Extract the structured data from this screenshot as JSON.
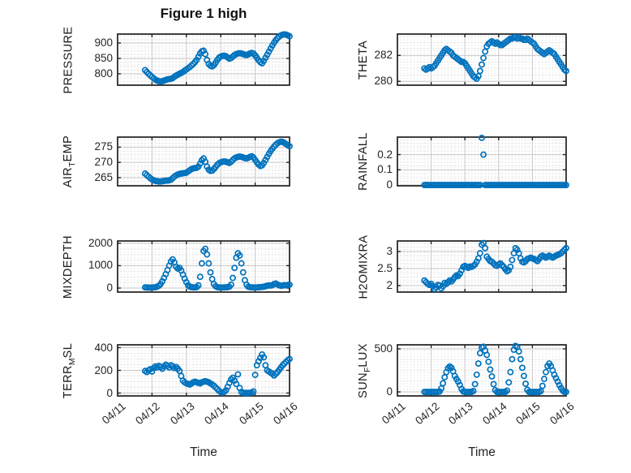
{
  "figure": {
    "title": "Figure 1 high",
    "xlabel": "Time",
    "marker_color": "#0072BD",
    "marker": "open-circle",
    "x_tick_labels": [
      "04/11",
      "04/12",
      "04/13",
      "04/14",
      "04/15",
      "04/16"
    ],
    "x_range_days": [
      0,
      5
    ]
  },
  "chart_data": [
    {
      "id": "pressure",
      "type": "scatter",
      "row": 0,
      "col": 0,
      "ylabel_segments": [
        {
          "text": "PRESSURE"
        }
      ],
      "yticks": [
        800,
        850,
        900
      ],
      "ylim": [
        763,
        929
      ],
      "x_minor_step_days": 0.1,
      "show_x_tick_labels": false,
      "series": {
        "t0": 0.8,
        "dt": 0.05,
        "values": [
          812,
          806,
          800,
          795,
          790,
          785,
          781,
          778,
          776,
          775,
          776,
          778,
          780,
          782,
          783,
          784,
          786,
          790,
          794,
          797,
          800,
          803,
          806,
          810,
          814,
          818,
          822,
          827,
          832,
          838,
          845,
          855,
          866,
          873,
          875,
          864,
          845,
          832,
          826,
          824,
          828,
          836,
          845,
          852,
          856,
          858,
          859,
          857,
          853,
          849,
          851,
          856,
          861,
          864,
          866,
          867,
          866,
          864,
          862,
          861,
          863,
          866,
          868,
          866,
          860,
          852,
          844,
          838,
          834,
          842,
          852,
          862,
          872,
          882,
          892,
          901,
          909,
          916,
          921,
          925,
          927,
          928,
          927,
          925,
          922
        ]
      }
    },
    {
      "id": "theta",
      "type": "scatter",
      "row": 0,
      "col": 1,
      "ylabel_segments": [
        {
          "text": "THETA"
        }
      ],
      "yticks": [
        280,
        282
      ],
      "ylim": [
        279.7,
        283.65
      ],
      "x_minor_step_days": 0.1,
      "show_x_tick_labels": false,
      "series": {
        "t0": 0.8,
        "dt": 0.05,
        "values": [
          281.0,
          280.9,
          281.0,
          281.1,
          281.0,
          281.1,
          281.2,
          281.4,
          281.6,
          281.8,
          282.0,
          282.2,
          282.4,
          282.5,
          282.4,
          282.3,
          282.2,
          282.0,
          281.9,
          281.8,
          281.7,
          281.6,
          281.5,
          281.5,
          281.4,
          281.2,
          281.0,
          280.8,
          280.6,
          280.4,
          280.3,
          280.2,
          280.4,
          280.8,
          281.3,
          281.8,
          282.3,
          282.7,
          282.9,
          283.0,
          283.1,
          283.0,
          282.9,
          283.0,
          282.9,
          282.8,
          282.8,
          282.9,
          283.0,
          283.1,
          283.2,
          283.3,
          283.3,
          283.4,
          283.4,
          283.3,
          283.4,
          283.3,
          283.3,
          283.2,
          283.2,
          283.3,
          283.2,
          283.1,
          283.0,
          282.9,
          282.7,
          282.5,
          282.4,
          282.3,
          282.2,
          282.1,
          282.2,
          282.3,
          282.4,
          282.3,
          282.2,
          282.1,
          281.9,
          281.7,
          281.5,
          281.3,
          281.1,
          280.9,
          280.8
        ]
      }
    },
    {
      "id": "air_temp",
      "type": "scatter",
      "row": 1,
      "col": 0,
      "ylabel_segments": [
        {
          "text": "AIR"
        },
        {
          "text": "T",
          "sub": true
        },
        {
          "text": "EMP"
        }
      ],
      "yticks": [
        265,
        270,
        275
      ],
      "ylim": [
        262.3,
        278.3
      ],
      "x_minor_step_days": 0.1,
      "show_x_tick_labels": false,
      "series": {
        "t0": 0.8,
        "dt": 0.05,
        "values": [
          266.3,
          265.8,
          265.3,
          264.8,
          264.4,
          264.1,
          263.9,
          263.8,
          263.7,
          263.7,
          263.8,
          263.9,
          264.0,
          264.0,
          264.1,
          264.3,
          264.8,
          265.3,
          265.7,
          266.0,
          266.2,
          266.3,
          266.4,
          266.5,
          266.6,
          267.0,
          267.4,
          267.8,
          268.0,
          268.1,
          268.2,
          268.6,
          269.6,
          270.7,
          271.3,
          270.2,
          268.6,
          267.6,
          267.2,
          267.3,
          267.8,
          268.5,
          269.2,
          269.7,
          270.0,
          270.2,
          270.3,
          270.2,
          270.0,
          269.8,
          270.2,
          270.8,
          271.3,
          271.6,
          271.8,
          271.9,
          271.8,
          271.6,
          271.4,
          271.3,
          271.5,
          271.8,
          272.0,
          271.6,
          270.8,
          270.0,
          269.3,
          268.8,
          269.0,
          269.8,
          270.8,
          271.8,
          272.8,
          273.7,
          274.5,
          275.2,
          275.8,
          276.3,
          276.6,
          276.8,
          276.7,
          276.4,
          276.0,
          275.6,
          275.3
        ]
      }
    },
    {
      "id": "rainfall",
      "type": "scatter",
      "row": 1,
      "col": 1,
      "ylabel_segments": [
        {
          "text": "RAINFALL"
        }
      ],
      "yticks": [
        0,
        0.1,
        0.2
      ],
      "ylim": [
        -0.005,
        0.315
      ],
      "x_minor_step_days": 0.1,
      "show_x_tick_labels": false,
      "series": {
        "t0": 0.8,
        "dt": 0.05,
        "values": [
          0,
          0,
          0,
          0,
          0,
          0,
          0,
          0,
          0,
          0,
          0,
          0,
          0,
          0,
          0,
          0,
          0,
          0,
          0,
          0,
          0,
          0,
          0,
          0,
          0,
          0,
          0,
          0,
          0,
          0,
          0,
          0,
          0,
          0,
          0.31,
          0.2,
          0,
          0,
          0,
          0,
          0,
          0,
          0,
          0,
          0,
          0,
          0,
          0,
          0,
          0,
          0,
          0,
          0,
          0,
          0,
          0,
          0,
          0,
          0,
          0,
          0,
          0,
          0,
          0,
          0,
          0,
          0,
          0,
          0,
          0,
          0,
          0,
          0,
          0,
          0,
          0,
          0,
          0,
          0,
          0,
          0,
          0,
          0,
          0,
          0
        ]
      }
    },
    {
      "id": "mixdepth",
      "type": "scatter",
      "row": 2,
      "col": 0,
      "ylabel_segments": [
        {
          "text": "MIXDEPTH"
        }
      ],
      "yticks": [
        0,
        1000,
        2000
      ],
      "ylim": [
        -180,
        2100
      ],
      "x_minor_step_days": 0.1,
      "show_x_tick_labels": false,
      "series": {
        "t0": 0.8,
        "dt": 0.05,
        "values": [
          30,
          25,
          20,
          20,
          25,
          30,
          40,
          60,
          100,
          180,
          300,
          450,
          620,
          800,
          1000,
          1180,
          1280,
          1150,
          950,
          870,
          900,
          780,
          600,
          420,
          260,
          120,
          60,
          40,
          30,
          30,
          40,
          120,
          500,
          1100,
          1650,
          1750,
          1500,
          1100,
          700,
          400,
          180,
          80,
          40,
          30,
          25,
          25,
          30,
          35,
          40,
          60,
          150,
          450,
          900,
          1350,
          1550,
          1450,
          1100,
          700,
          350,
          150,
          60,
          40,
          30,
          25,
          25,
          30,
          35,
          40,
          50,
          60,
          80,
          100,
          120,
          110,
          130,
          180,
          200,
          160,
          120,
          100,
          110,
          130,
          120,
          140,
          150
        ]
      }
    },
    {
      "id": "h2omixra",
      "type": "scatter",
      "row": 2,
      "col": 1,
      "ylabel_segments": [
        {
          "text": "H2OMIXRA"
        }
      ],
      "yticks": [
        2,
        2.5,
        3
      ],
      "ylim": [
        1.81,
        3.31
      ],
      "x_minor_step_days": 0.1,
      "show_x_tick_labels": false,
      "series": {
        "t0": 0.8,
        "dt": 0.05,
        "values": [
          2.15,
          2.1,
          2.05,
          2.02,
          2.05,
          1.98,
          1.9,
          1.95,
          2.02,
          2.0,
          1.92,
          1.98,
          2.08,
          2.05,
          2.1,
          2.15,
          2.12,
          2.18,
          2.25,
          2.3,
          2.28,
          2.35,
          2.45,
          2.55,
          2.58,
          2.55,
          2.52,
          2.56,
          2.55,
          2.58,
          2.62,
          2.7,
          2.8,
          2.95,
          3.2,
          3.25,
          3.1,
          2.85,
          2.78,
          2.72,
          2.7,
          2.65,
          2.6,
          2.58,
          2.62,
          2.65,
          2.6,
          2.55,
          2.48,
          2.42,
          2.45,
          2.55,
          2.75,
          2.95,
          3.1,
          3.05,
          2.95,
          2.8,
          2.7,
          2.68,
          2.72,
          2.78,
          2.8,
          2.82,
          2.8,
          2.78,
          2.75,
          2.72,
          2.78,
          2.85,
          2.88,
          2.85,
          2.82,
          2.85,
          2.88,
          2.85,
          2.82,
          2.85,
          2.88,
          2.9,
          2.92,
          2.95,
          3.0,
          3.05,
          3.1
        ]
      }
    },
    {
      "id": "terr_msl",
      "type": "scatter",
      "row": 3,
      "col": 0,
      "ylabel_segments": [
        {
          "text": "TERR"
        },
        {
          "text": "M",
          "sub": true
        },
        {
          "text": "SL"
        }
      ],
      "yticks": [
        0,
        200,
        400
      ],
      "ylim": [
        -25,
        425
      ],
      "x_minor_step_days": 0.1,
      "show_x_tick_labels": true,
      "series": {
        "t0": 0.8,
        "dt": 0.05,
        "values": [
          195,
          185,
          200,
          210,
          190,
          220,
          235,
          225,
          240,
          230,
          215,
          235,
          250,
          240,
          225,
          245,
          235,
          220,
          230,
          215,
          195,
          150,
          110,
          95,
          85,
          80,
          75,
          85,
          95,
          100,
          95,
          90,
          85,
          95,
          100,
          105,
          100,
          95,
          85,
          75,
          65,
          50,
          35,
          20,
          8,
          3,
          10,
          25,
          55,
          90,
          120,
          135,
          110,
          80,
          165,
          45,
          10,
          3,
          0,
          2,
          0,
          3,
          5,
          15,
          160,
          245,
          280,
          310,
          340,
          315,
          245,
          200,
          190,
          180,
          170,
          155,
          170,
          185,
          205,
          225,
          245,
          260,
          275,
          290,
          300
        ]
      }
    },
    {
      "id": "sun_flux",
      "type": "scatter",
      "row": 3,
      "col": 1,
      "ylabel_segments": [
        {
          "text": "SUN"
        },
        {
          "text": "F",
          "sub": true
        },
        {
          "text": "LUX"
        }
      ],
      "yticks": [
        0,
        500
      ],
      "ylim": [
        -47,
        547
      ],
      "x_minor_step_days": 0.1,
      "show_x_tick_labels": true,
      "series": {
        "t0": 0.8,
        "dt": 0.05,
        "values": [
          0,
          0,
          0,
          0,
          0,
          0,
          0,
          0,
          0,
          5,
          40,
          100,
          170,
          230,
          275,
          295,
          280,
          240,
          185,
          150,
          120,
          80,
          35,
          5,
          0,
          0,
          0,
          0,
          0,
          10,
          90,
          200,
          330,
          450,
          515,
          525,
          480,
          430,
          350,
          260,
          180,
          90,
          20,
          0,
          0,
          0,
          0,
          0,
          0,
          15,
          110,
          230,
          380,
          490,
          535,
          520,
          470,
          380,
          280,
          185,
          95,
          25,
          0,
          0,
          0,
          0,
          0,
          0,
          0,
          10,
          70,
          150,
          230,
          300,
          330,
          300,
          250,
          200,
          160,
          120,
          80,
          45,
          15,
          0,
          0
        ]
      }
    }
  ]
}
